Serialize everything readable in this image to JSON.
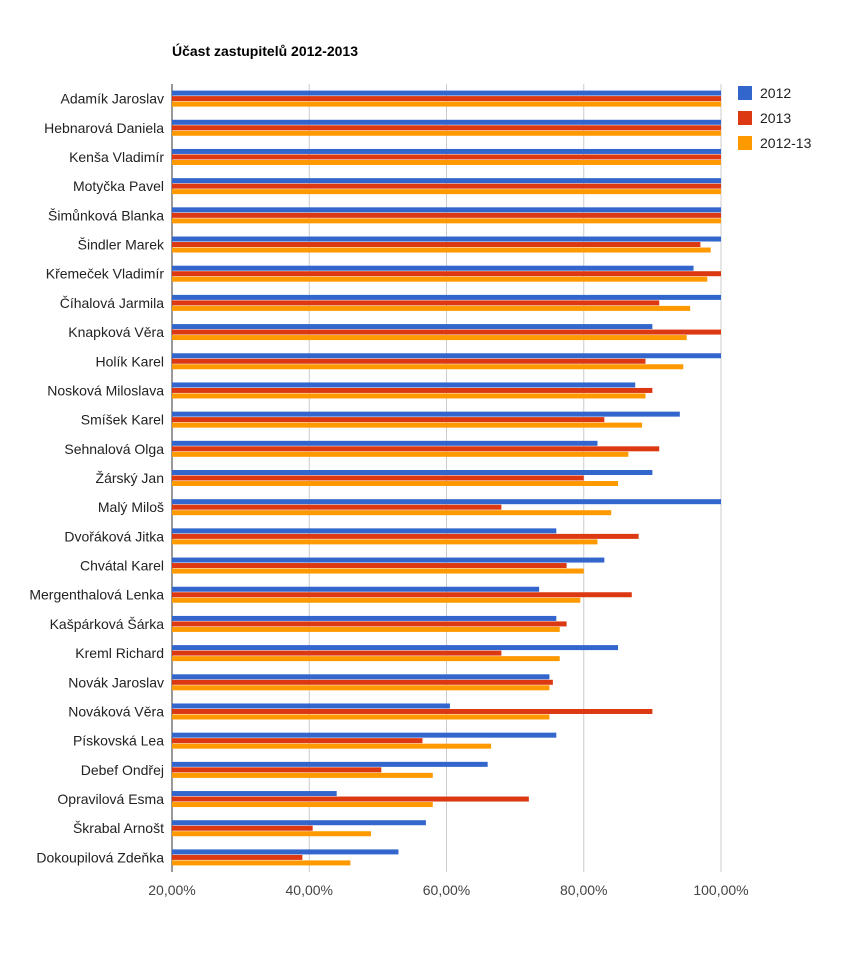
{
  "chart_data": {
    "type": "bar",
    "orientation": "horizontal",
    "title": "Účast zastupitelů 2012-2013",
    "xlabel": "",
    "ylabel": "",
    "xlim": [
      20,
      100
    ],
    "x_ticks": [
      "20,00%",
      "40,00%",
      "60,00%",
      "80,00%",
      "100,00%"
    ],
    "x_tick_values": [
      20,
      40,
      60,
      80,
      100
    ],
    "grid": true,
    "legend_position": "right",
    "categories": [
      "Adamík Jaroslav",
      "Hebnarová Daniela",
      "Kenša Vladimír",
      "Motyčka Pavel",
      "Šimůnková Blanka",
      "Šindler Marek",
      "Křemeček Vladimír",
      "Číhalová Jarmila",
      "Knapková Věra",
      "Holík Karel",
      "Nosková Miloslava",
      "Smíšek Karel",
      "Sehnalová Olga",
      "Žárský Jan",
      "Malý Miloš",
      "Dvořáková Jitka",
      "Chvátal Karel",
      "Mergenthalová Lenka",
      "Kašpárková Šárka",
      "Kreml Richard",
      "Novák Jaroslav",
      "Nováková Věra",
      "Pískovská Lea",
      "Debef Ondřej",
      "Opravilová Esma",
      "Škrabal Arnošt",
      "Dokoupilová Zdeňka"
    ],
    "series": [
      {
        "name": "2012",
        "color": "#3366cc",
        "values": [
          100,
          100,
          100,
          100,
          100,
          100,
          96,
          100,
          90,
          100,
          87.5,
          94,
          82,
          90,
          100,
          76,
          83,
          73.5,
          76,
          85,
          75,
          60.5,
          76,
          66,
          44,
          57,
          53
        ]
      },
      {
        "name": "2013",
        "color": "#dc3912",
        "values": [
          100,
          100,
          100,
          100,
          100,
          97,
          100,
          91,
          100,
          89,
          90,
          83,
          91,
          80,
          68,
          88,
          77.5,
          87,
          77.5,
          68,
          75.5,
          90,
          56.5,
          50.5,
          72,
          40.5,
          39
        ]
      },
      {
        "name": "2012-13",
        "color": "#ff9900",
        "values": [
          100,
          100,
          100,
          100,
          100,
          98.5,
          98,
          95.5,
          95,
          94.5,
          89,
          88.5,
          86.5,
          85,
          84,
          82,
          80,
          79.5,
          76.5,
          76.5,
          75,
          75,
          66.5,
          58,
          58,
          49,
          46
        ]
      }
    ]
  }
}
